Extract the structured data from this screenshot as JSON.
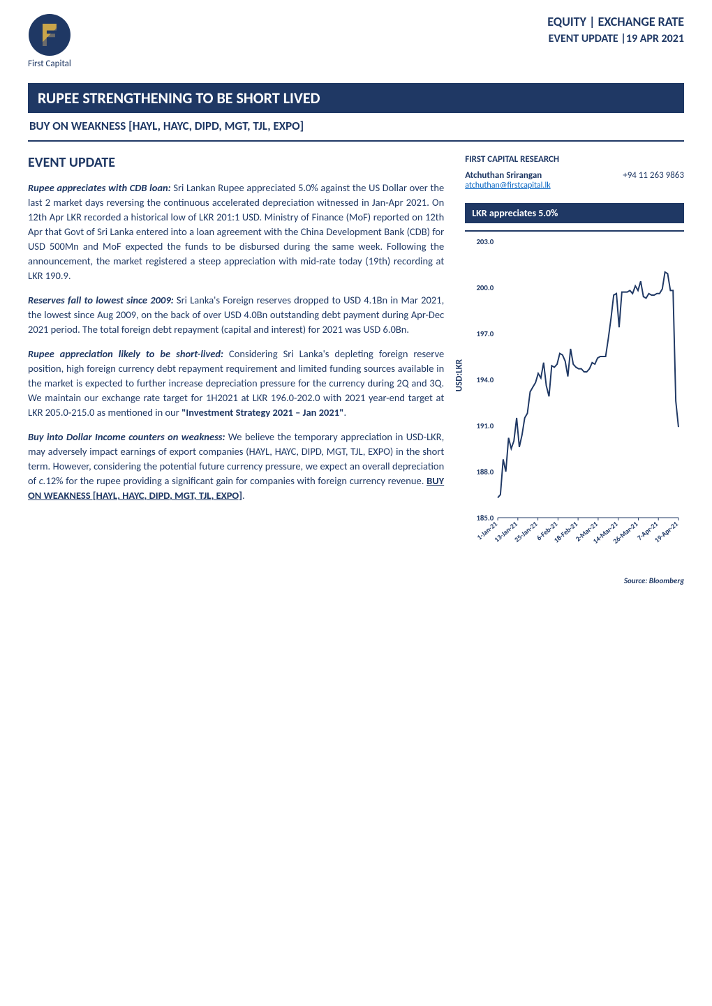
{
  "header": {
    "logo_text": "First Capital",
    "category": "EQUITY | EXCHANGE RATE",
    "event_line": "EVENT UPDATE |19 APR 2021"
  },
  "main_title": "RUPEE STRENGTHENING TO BE SHORT LIVED",
  "sub_title": "BUY ON WEAKNESS [HAYL, HAYC, DIPD, MGT, TJL, EXPO]",
  "section_heading": "EVENT UPDATE",
  "paragraphs": {
    "p1_lead": "Rupee appreciates with CDB loan:",
    "p1_body": " Sri Lankan Rupee appreciated 5.0% against the US Dollar over the last 2 market days reversing the continuous accelerated depreciation witnessed in Jan-Apr 2021. On 12th Apr LKR recorded a historical low of LKR 201:1 USD. Ministry of Finance (MoF) reported on 12th Apr that Govt of Sri Lanka entered into a loan agreement with the China Development Bank (CDB) for USD 500Mn and MoF expected the funds to be disbursed during the same week. Following the announcement, the market registered a steep appreciation with mid-rate today (19th) recording at LKR 190.9.",
    "p2_lead": "Reserves fall to lowest since 2009:",
    "p2_body": " Sri Lanka's Foreign reserves dropped to USD 4.1Bn in Mar 2021, the lowest since Aug 2009, on the back of over USD 4.0Bn outstanding debt payment during Apr-Dec 2021 period. The total foreign debt repayment (capital and interest) for 2021 was USD 6.0Bn.",
    "p3_lead": "Rupee appreciation likely to be short-lived:",
    "p3_body_a": " Considering Sri Lanka's depleting foreign reserve position, high foreign currency debt repayment requirement and limited funding sources available in the market is expected to further increase depreciation pressure for the currency during 2Q and 3Q. We maintain our exchange rate target for 1H2021 at LKR 196.0-202.0 with 2021 year-end target at LKR 205.0-215.0 as mentioned in our ",
    "p3_bold": "\"Investment Strategy 2021 – Jan 2021\"",
    "p3_body_b": ".",
    "p4_lead": "Buy into Dollar Income counters on weakness:",
    "p4_body_a": " We believe the temporary appreciation in USD-LKR, may adversely impact earnings of export companies (HAYL, HAYC, DIPD, MGT, TJL, EXPO) in the short term. However, considering the potential future currency pressure, we expect an overall depreciation of ",
    "p4_italic": "c.",
    "p4_body_b": "12% for the rupee providing a significant gain for companies with foreign currency revenue. ",
    "p4_underline": "BUY ON WEAKNESS [HAYL, HAYC, DIPD, MGT, TJL, EXPO]",
    "p4_body_c": "."
  },
  "research": {
    "heading": "FIRST CAPITAL RESEARCH",
    "name": "Atchuthan Srirangan",
    "phone": "+94 11 263 9863",
    "email": "atchuthan@firstcapital.lk"
  },
  "chart": {
    "title": "LKR appreciates 5.0%",
    "type": "line",
    "y_axis_label": "USD:LKR",
    "ylim": [
      185.0,
      203.0
    ],
    "ytick_step": 3.0,
    "ytick_labels": [
      "185.0",
      "188.0",
      "191.0",
      "194.0",
      "197.0",
      "200.0",
      "203.0"
    ],
    "x_labels": [
      "1-Jan-21",
      "13-Jan-21",
      "25-Jan-21",
      "6-Feb-21",
      "18-Feb-21",
      "2-Mar-21",
      "14-Mar-21",
      "26-Mar-21",
      "7-Apr-21",
      "19-Apr-21"
    ],
    "line_color": "#1f3864",
    "line_width": 2,
    "background_color": "#ffffff",
    "grid": false,
    "label_fontsize": 11,
    "tick_fontsize": 11,
    "data": [
      186.3,
      186.5,
      188.8,
      188.0,
      190.2,
      189.5,
      190.0,
      191.5,
      189.6,
      190.4,
      191.5,
      191.8,
      193.2,
      193.5,
      193.8,
      194.4,
      194.1,
      195.1,
      193.6,
      192.9,
      194.9,
      194.8,
      195.0,
      195.7,
      195.6,
      195.2,
      194.2,
      196.0,
      195.0,
      194.8,
      194.7,
      194.7,
      194.5,
      194.5,
      194.7,
      195.1,
      195.0,
      195.4,
      195.5,
      195.5,
      195.5,
      196.7,
      198.0,
      199.5,
      199.6,
      197.4,
      199.7,
      199.7,
      199.7,
      199.8,
      199.6,
      200.1,
      199.8,
      200.4,
      199.4,
      199.3,
      199.6,
      199.5,
      199.5,
      199.6,
      199.6,
      199.9,
      201.0,
      200.9,
      199.8,
      199.8,
      192.6,
      190.9
    ],
    "source": "Source: Bloomberg"
  },
  "colors": {
    "primary": "#1f3864",
    "white": "#ffffff",
    "link": "#0563c1"
  }
}
